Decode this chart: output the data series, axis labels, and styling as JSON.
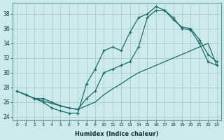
{
  "xlabel": "Humidex (Indice chaleur)",
  "ylabel": "",
  "bg_color": "#cceaea",
  "grid_color": "#aacccc",
  "line_color": "#1a6b6b",
  "xlim": [
    -0.5,
    23.5
  ],
  "ylim": [
    23.5,
    39.5
  ],
  "xticks": [
    0,
    1,
    2,
    3,
    4,
    5,
    6,
    7,
    8,
    9,
    10,
    11,
    12,
    13,
    14,
    15,
    16,
    17,
    18,
    19,
    20,
    21,
    22,
    23
  ],
  "yticks": [
    24,
    26,
    28,
    30,
    32,
    34,
    36,
    38
  ],
  "line1_x": [
    0,
    1,
    2,
    3,
    4,
    5,
    6,
    7,
    8,
    9,
    10,
    11,
    12,
    13,
    14,
    15,
    16,
    17,
    18,
    19,
    20,
    21,
    22,
    23
  ],
  "line1_y": [
    27.5,
    27.0,
    26.5,
    26.0,
    25.2,
    24.8,
    24.5,
    24.5,
    28.5,
    30.5,
    33.0,
    33.5,
    33.0,
    35.5,
    37.5,
    38.0,
    39.0,
    38.5,
    37.2,
    36.2,
    36.0,
    34.5,
    32.5,
    31.5
  ],
  "line2_x": [
    0,
    1,
    2,
    3,
    4,
    5,
    6,
    7,
    8,
    9,
    10,
    11,
    12,
    13,
    14,
    15,
    16,
    17,
    18,
    19,
    20,
    21,
    22,
    23
  ],
  "line2_y": [
    27.5,
    27.0,
    26.5,
    26.2,
    25.8,
    25.5,
    25.2,
    25.0,
    25.5,
    26.0,
    27.0,
    27.8,
    28.5,
    29.3,
    30.0,
    30.5,
    31.0,
    31.5,
    32.0,
    32.5,
    33.0,
    33.5,
    34.0,
    31.0
  ],
  "line3_x": [
    0,
    1,
    2,
    3,
    4,
    5,
    6,
    7,
    8,
    9,
    10,
    11,
    12,
    13,
    14,
    15,
    16,
    17,
    18,
    19,
    20,
    21,
    22,
    23
  ],
  "line3_y": [
    27.5,
    27.0,
    26.5,
    26.5,
    26.0,
    25.5,
    25.2,
    25.0,
    26.5,
    27.5,
    30.0,
    30.5,
    31.0,
    31.5,
    33.5,
    37.5,
    38.5,
    38.5,
    37.5,
    36.0,
    35.8,
    34.0,
    31.5,
    31.0
  ]
}
